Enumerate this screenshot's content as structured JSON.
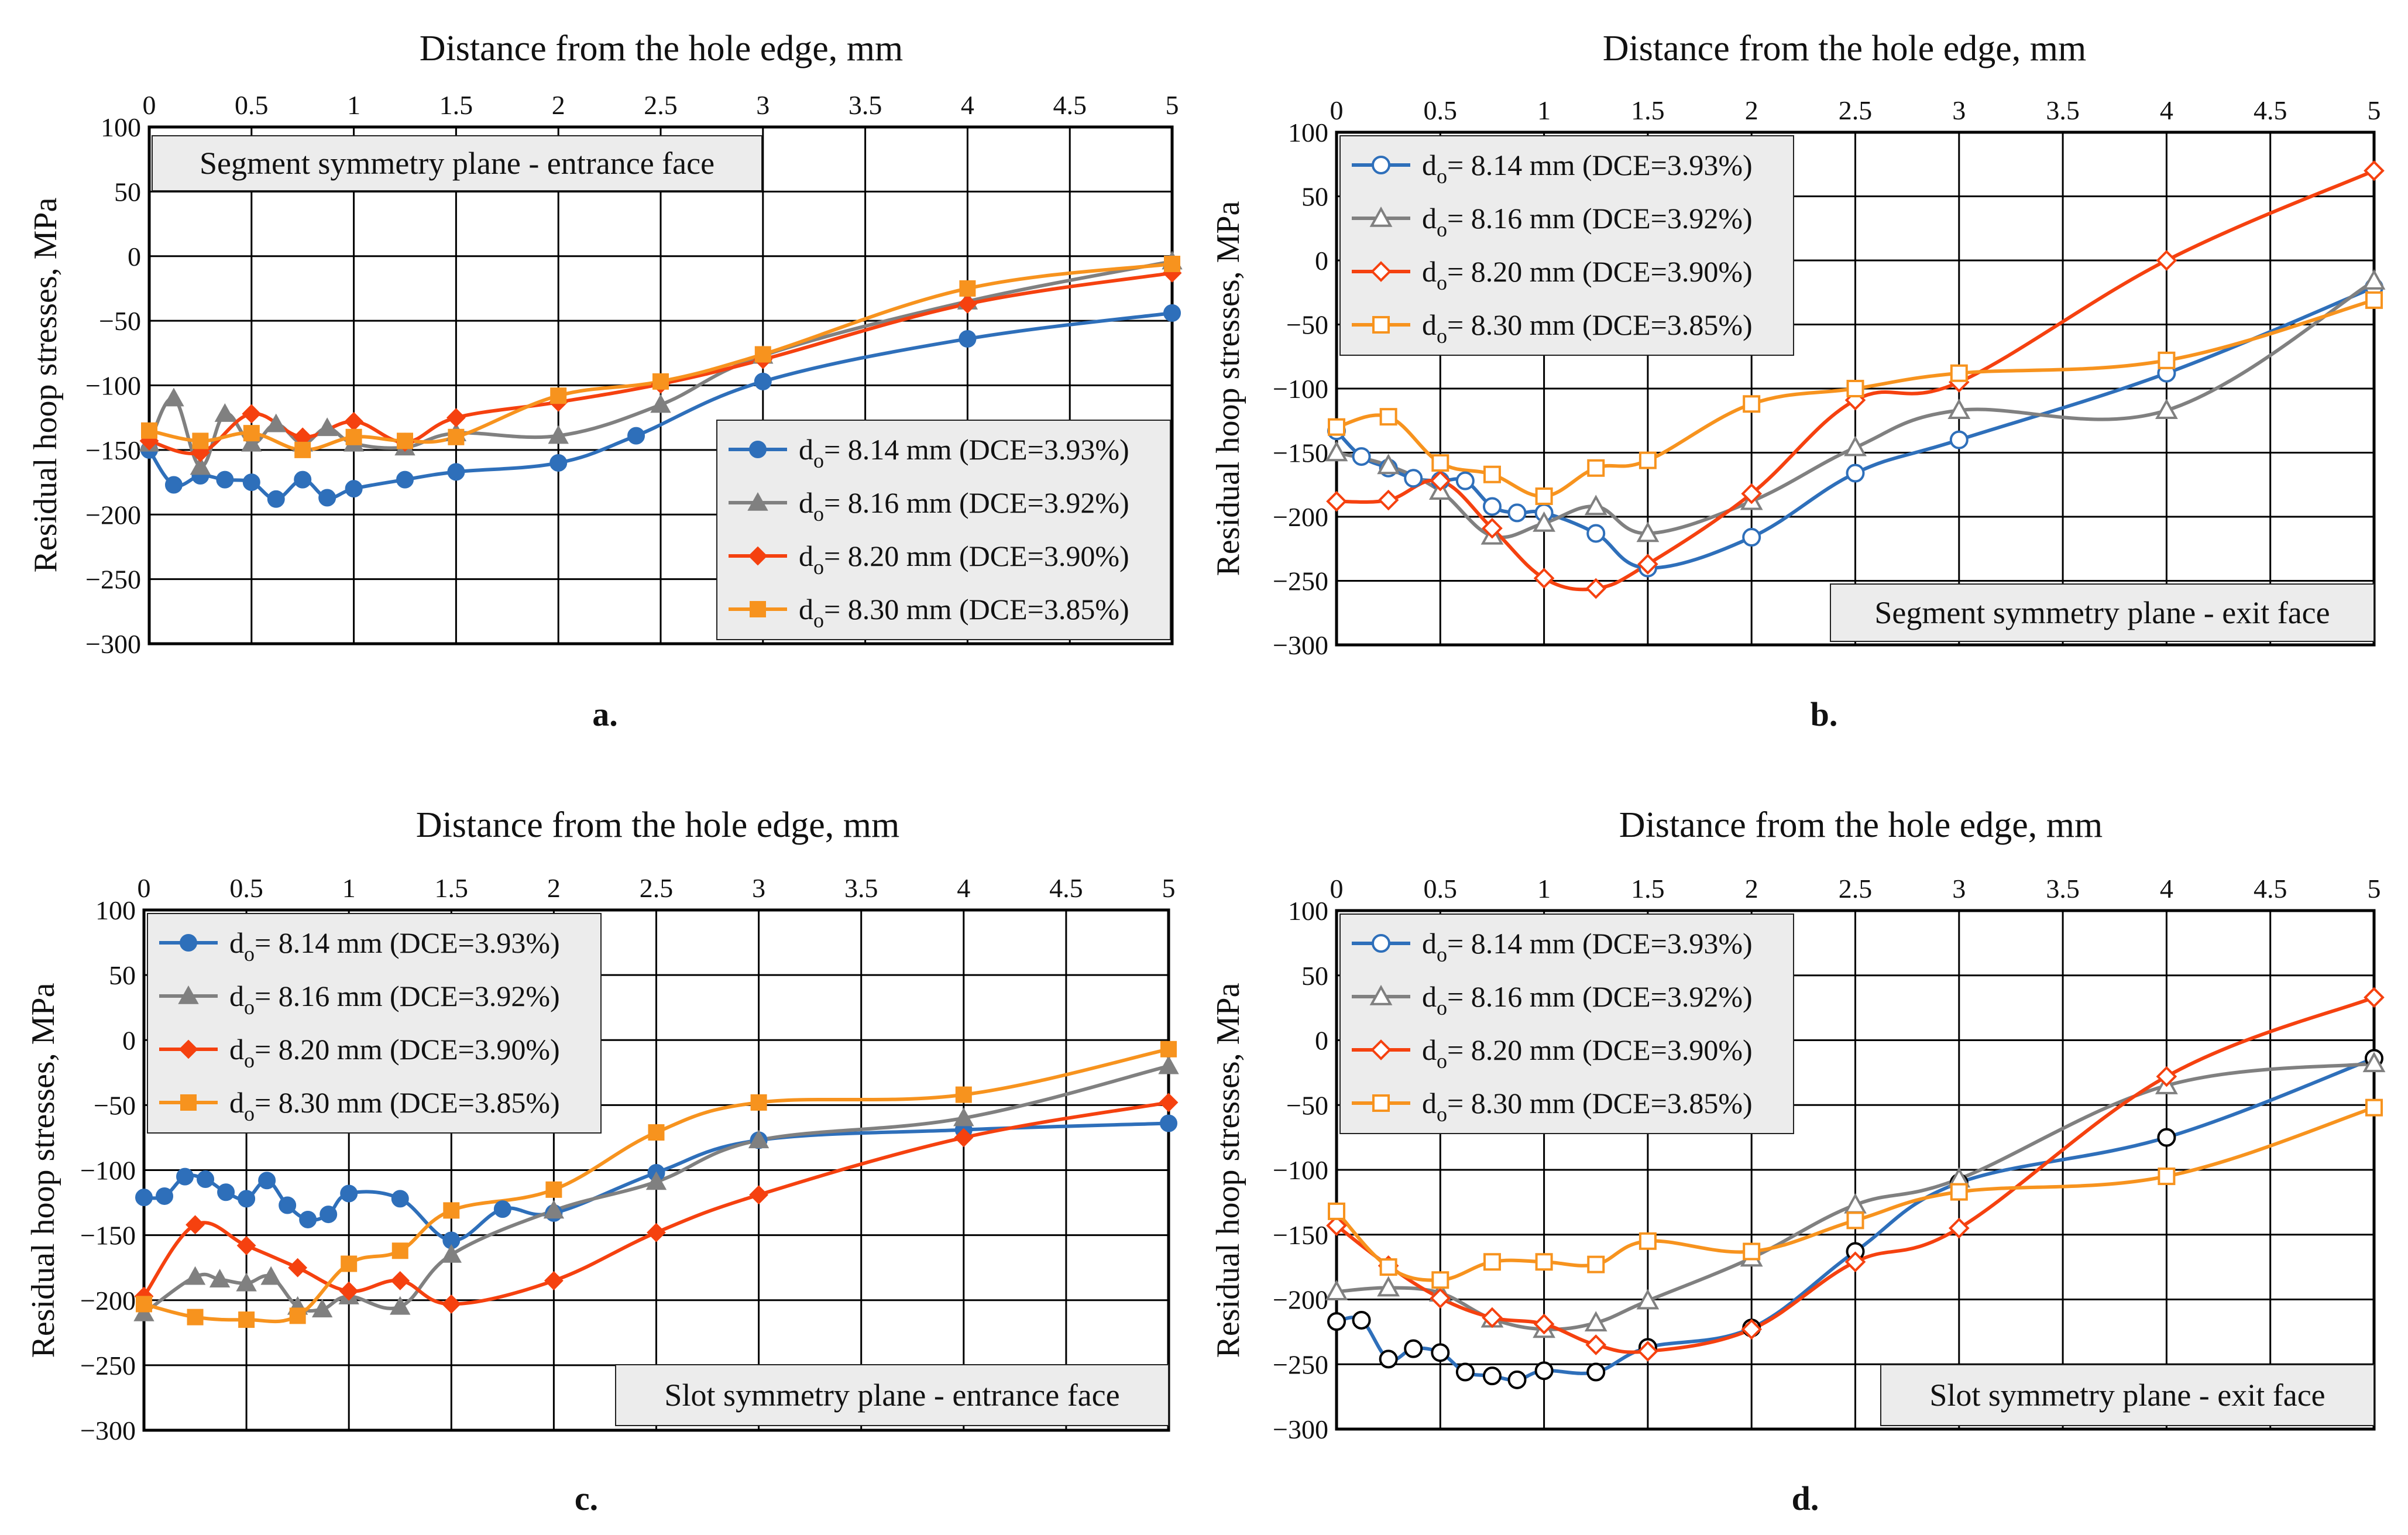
{
  "colors": {
    "d814": "#2e6fba",
    "d816": "#808080",
    "d820": "#f5410f",
    "d830": "#f7931e",
    "legend_bg": "#ececec",
    "grid": "#000000"
  },
  "chart_data": [
    {
      "panel_label": "a.",
      "type": "line",
      "marker_style": "filled",
      "title": "Distance from the hole edge, mm",
      "xlabel": "Distance from the hole edge, mm",
      "ylabel": "Residual hoop stresses, MPa",
      "annotation": "Segment symmetry plane - entrance face",
      "legend_position": "bottom-right",
      "xlim": [
        0,
        5
      ],
      "ylim": [
        -300,
        100
      ],
      "x_ticks": [
        "0",
        "0.5",
        "1",
        "1.5",
        "2",
        "2.5",
        "3",
        "3.5",
        "4",
        "4.5",
        "5"
      ],
      "y_ticks": [
        "100",
        "50",
        "0",
        "−50",
        "−100",
        "−150",
        "−200",
        "−250",
        "−300"
      ],
      "series": [
        {
          "name": "d",
          "name_sub": "o",
          "name_rest": "= 8.14 mm (DCE=3.93%)",
          "color_key": "d814",
          "marker": "circle",
          "x": [
            0,
            0.12,
            0.25,
            0.37,
            0.5,
            0.62,
            0.75,
            0.87,
            1,
            1.25,
            1.5,
            2,
            2.38,
            3,
            4,
            5
          ],
          "y": [
            -150,
            -177,
            -170,
            -173,
            -175,
            -188,
            -173,
            -187,
            -180,
            -173,
            -167,
            -160,
            -139,
            -97,
            -64,
            -44
          ]
        },
        {
          "name": "d",
          "name_sub": "o",
          "name_rest": "= 8.16 mm (DCE=3.92%)",
          "color_key": "d816",
          "marker": "triangle",
          "x": [
            0,
            0.12,
            0.25,
            0.37,
            0.5,
            0.62,
            0.75,
            0.87,
            1,
            1.25,
            1.5,
            2,
            2.5,
            3,
            4,
            5
          ],
          "y": [
            -145,
            -110,
            -163,
            -122,
            -145,
            -130,
            -145,
            -133,
            -145,
            -148,
            -137,
            -139,
            -115,
            -77,
            -35,
            -4
          ]
        },
        {
          "name": "d",
          "name_sub": "o",
          "name_rest": "= 8.20 mm (DCE=3.90%)",
          "color_key": "d820",
          "marker": "diamond",
          "x": [
            0,
            0.25,
            0.5,
            0.75,
            1,
            1.25,
            1.5,
            2,
            2.5,
            3,
            4,
            5
          ],
          "y": [
            -143,
            -152,
            -122,
            -140,
            -128,
            -144,
            -125,
            -113,
            -99,
            -80,
            -37,
            -13
          ]
        },
        {
          "name": "d",
          "name_sub": "o",
          "name_rest": "= 8.30 mm (DCE=3.85%)",
          "color_key": "d830",
          "marker": "square",
          "x": [
            0,
            0.25,
            0.5,
            0.75,
            1,
            1.25,
            1.5,
            2,
            2.5,
            3,
            4,
            5
          ],
          "y": [
            -135,
            -143,
            -137,
            -150,
            -140,
            -143,
            -140,
            -108,
            -97,
            -76,
            -25,
            -6
          ]
        }
      ]
    },
    {
      "panel_label": "b.",
      "type": "line",
      "marker_style": "hollow",
      "title": "Distance from the hole edge, mm",
      "xlabel": "Distance from the hole edge, mm",
      "ylabel": "Residual hoop stresses, MPa",
      "annotation": "Segment symmetry plane - exit face",
      "legend_position": "top-left",
      "xlim": [
        0,
        5
      ],
      "ylim": [
        -300,
        100
      ],
      "x_ticks": [
        "0",
        "0.5",
        "1",
        "1.5",
        "2",
        "2.5",
        "3",
        "3.5",
        "4",
        "4.5",
        "5"
      ],
      "y_ticks": [
        "100",
        "50",
        "0",
        "−50",
        "−100",
        "−150",
        "−200",
        "−250",
        "−300"
      ],
      "series": [
        {
          "name": "d",
          "name_sub": "o",
          "name_rest": "= 8.14 mm (DCE=3.93%)",
          "color_key": "d814",
          "marker": "circle",
          "x": [
            0,
            0.12,
            0.25,
            0.37,
            0.5,
            0.62,
            0.75,
            0.87,
            1,
            1.25,
            1.5,
            2,
            2.5,
            3,
            4,
            5
          ],
          "y": [
            -133,
            -153,
            -162,
            -170,
            -172,
            -172,
            -192,
            -197,
            -197,
            -213,
            -240,
            -216,
            -166,
            -140,
            -88,
            -21
          ]
        },
        {
          "name": "d",
          "name_sub": "o",
          "name_rest": "= 8.16 mm (DCE=3.92%)",
          "color_key": "d816",
          "marker": "triangle",
          "x": [
            0,
            0.25,
            0.5,
            0.75,
            1,
            1.25,
            1.5,
            2,
            2.5,
            3,
            4,
            5
          ],
          "y": [
            -150,
            -160,
            -180,
            -215,
            -205,
            -192,
            -213,
            -188,
            -146,
            -117,
            -117,
            -16
          ]
        },
        {
          "name": "d",
          "name_sub": "o",
          "name_rest": "= 8.20 mm (DCE=3.90%)",
          "color_key": "d820",
          "marker": "diamond",
          "x": [
            0,
            0.25,
            0.5,
            0.75,
            1,
            1.25,
            1.5,
            2,
            2.5,
            3,
            4,
            5
          ],
          "y": [
            -188,
            -187,
            -172,
            -209,
            -248,
            -256,
            -237,
            -182,
            -109,
            -95,
            0,
            70
          ]
        },
        {
          "name": "d",
          "name_sub": "o",
          "name_rest": "= 8.30 mm (DCE=3.85%)",
          "color_key": "d830",
          "marker": "square",
          "x": [
            0,
            0.25,
            0.5,
            0.75,
            1,
            1.25,
            1.5,
            2,
            2.5,
            3,
            4,
            5
          ],
          "y": [
            -130,
            -122,
            -158,
            -167,
            -184,
            -162,
            -156,
            -112,
            -100,
            -88,
            -78,
            -31
          ]
        }
      ]
    },
    {
      "panel_label": "c.",
      "type": "line",
      "marker_style": "filled",
      "title": "Distance from the hole edge, mm",
      "xlabel": "Distance from the hole edge, mm",
      "ylabel": "Residual hoop stresses, MPa",
      "annotation": "Slot symmetry plane - entrance face",
      "legend_position": "top-left",
      "xlim": [
        0,
        5
      ],
      "ylim": [
        -300,
        100
      ],
      "x_ticks": [
        "0",
        "0.5",
        "1",
        "1.5",
        "2",
        "2.5",
        "3",
        "3.5",
        "4",
        "4.5",
        "5"
      ],
      "y_ticks": [
        "100",
        "50",
        "0",
        "−50",
        "−100",
        "−150",
        "−200",
        "−250",
        "−300"
      ],
      "series": [
        {
          "name": "d",
          "name_sub": "o",
          "name_rest": "= 8.14 mm (DCE=3.93%)",
          "color_key": "d814",
          "marker": "circle",
          "x": [
            0,
            0.1,
            0.2,
            0.3,
            0.4,
            0.5,
            0.6,
            0.7,
            0.8,
            0.9,
            1,
            1.25,
            1.5,
            1.75,
            2,
            2.5,
            3,
            4,
            5
          ],
          "y": [
            -121,
            -120,
            -105,
            -107,
            -117,
            -122,
            -108,
            -127,
            -138,
            -134,
            -118,
            -122,
            -154,
            -130,
            -133,
            -102,
            -77,
            -69,
            -64
          ]
        },
        {
          "name": "d",
          "name_sub": "o",
          "name_rest": "= 8.16 mm (DCE=3.92%)",
          "color_key": "d816",
          "marker": "triangle",
          "x": [
            0,
            0.25,
            0.37,
            0.5,
            0.62,
            0.75,
            0.87,
            1,
            1.25,
            1.5,
            2,
            2.5,
            3,
            4,
            5
          ],
          "y": [
            -210,
            -182,
            -184,
            -187,
            -182,
            -205,
            -207,
            -197,
            -205,
            -165,
            -131,
            -109,
            -77,
            -60,
            -20
          ]
        },
        {
          "name": "d",
          "name_sub": "o",
          "name_rest": "= 8.20 mm (DCE=3.90%)",
          "color_key": "d820",
          "marker": "diamond",
          "x": [
            0,
            0.25,
            0.5,
            0.75,
            1,
            1.25,
            1.5,
            2,
            2.5,
            3,
            4,
            5
          ],
          "y": [
            -197,
            -142,
            -158,
            -175,
            -193,
            -185,
            -203,
            -185,
            -148,
            -119,
            -75,
            -48
          ]
        },
        {
          "name": "d",
          "name_sub": "o",
          "name_rest": "= 8.30 mm (DCE=3.85%)",
          "color_key": "d830",
          "marker": "square",
          "x": [
            0,
            0.25,
            0.5,
            0.75,
            1,
            1.25,
            1.5,
            2,
            2.5,
            3,
            4,
            5
          ],
          "y": [
            -203,
            -213,
            -215,
            -212,
            -172,
            -162,
            -131,
            -115,
            -71,
            -48,
            -42,
            -7
          ]
        }
      ]
    },
    {
      "panel_label": "d.",
      "type": "line",
      "marker_style": "hollow",
      "title": "Distance from the hole edge, mm",
      "xlabel": "Distance from the hole edge, mm",
      "ylabel": "Residual hoop stresses, MPa",
      "annotation": "Slot symmetry plane - exit face",
      "legend_position": "top-left",
      "xlim": [
        0,
        5
      ],
      "ylim": [
        -300,
        100
      ],
      "x_ticks": [
        "0",
        "0.5",
        "1",
        "1.5",
        "2",
        "2.5",
        "3",
        "3.5",
        "4",
        "4.5",
        "5"
      ],
      "y_ticks": [
        "100",
        "50",
        "0",
        "−50",
        "−100",
        "−150",
        "−200",
        "−250",
        "−300"
      ],
      "series": [
        {
          "name": "d",
          "name_sub": "o",
          "name_rest": "= 8.14 mm (DCE=3.93%)",
          "color_key": "d814",
          "marker": "circle",
          "marker_stroke": "#000000",
          "x": [
            0,
            0.12,
            0.25,
            0.37,
            0.5,
            0.62,
            0.75,
            0.87,
            1,
            1.25,
            1.5,
            2,
            2.5,
            3,
            4,
            5
          ],
          "y": [
            -217,
            -216,
            -246,
            -238,
            -241,
            -256,
            -259,
            -262,
            -255,
            -256,
            -237,
            -222,
            -163,
            -110,
            -75,
            -14
          ]
        },
        {
          "name": "d",
          "name_sub": "o",
          "name_rest": "= 8.16 mm (DCE=3.92%)",
          "color_key": "d816",
          "marker": "triangle",
          "x": [
            0,
            0.25,
            0.5,
            0.75,
            1,
            1.25,
            1.5,
            2,
            2.5,
            3,
            4,
            5
          ],
          "y": [
            -194,
            -191,
            -195,
            -215,
            -223,
            -218,
            -201,
            -168,
            -127,
            -107,
            -35,
            -18
          ]
        },
        {
          "name": "d",
          "name_sub": "o",
          "name_rest": "= 8.20 mm (DCE=3.90%)",
          "color_key": "d820",
          "marker": "diamond",
          "x": [
            0,
            0.25,
            0.5,
            0.75,
            1,
            1.25,
            1.5,
            2,
            2.5,
            3,
            4,
            5
          ],
          "y": [
            -143,
            -174,
            -199,
            -214,
            -219,
            -235,
            -240,
            -223,
            -171,
            -145,
            -28,
            33
          ]
        },
        {
          "name": "d",
          "name_sub": "o",
          "name_rest": "= 8.30 mm (DCE=3.85%)",
          "color_key": "d830",
          "marker": "square",
          "x": [
            0,
            0.25,
            0.5,
            0.75,
            1,
            1.25,
            1.5,
            2,
            2.5,
            3,
            4,
            5
          ],
          "y": [
            -132,
            -175,
            -185,
            -171,
            -171,
            -173,
            -155,
            -163,
            -139,
            -117,
            -105,
            -52
          ]
        }
      ]
    }
  ]
}
